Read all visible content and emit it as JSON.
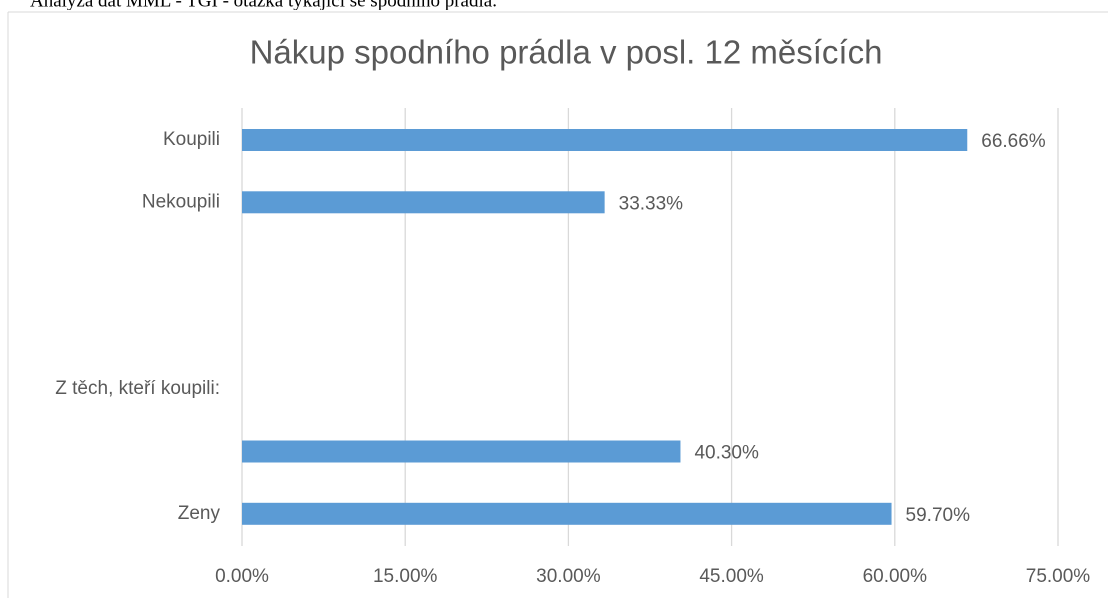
{
  "caption": "Analýza dat MML - TGI - otázka týkající se spodního prádla.",
  "chart_data": {
    "type": "bar",
    "orientation": "horizontal",
    "title": "Nákup spodního prádla v posl. 12 měsících",
    "categories": [
      "Koupili",
      "Nekoupili",
      null,
      null,
      "Z těch, kteří koupili:",
      null,
      "Zeny"
    ],
    "values": [
      66.66,
      33.33,
      null,
      null,
      null,
      40.3,
      59.7
    ],
    "value_labels": [
      "66.66%",
      "33.33%",
      null,
      null,
      null,
      "40.30%",
      "59.70%"
    ],
    "color": "#5b9bd5",
    "xlim": [
      0,
      75
    ],
    "xticks": [
      {
        "value": 0,
        "label": "0.00%"
      },
      {
        "value": 15,
        "label": "15.00%"
      },
      {
        "value": 30,
        "label": "30.00%"
      },
      {
        "value": 45,
        "label": "45.00%"
      },
      {
        "value": 60,
        "label": "60.00%"
      },
      {
        "value": 75,
        "label": "75.00%"
      }
    ],
    "grid": true
  }
}
